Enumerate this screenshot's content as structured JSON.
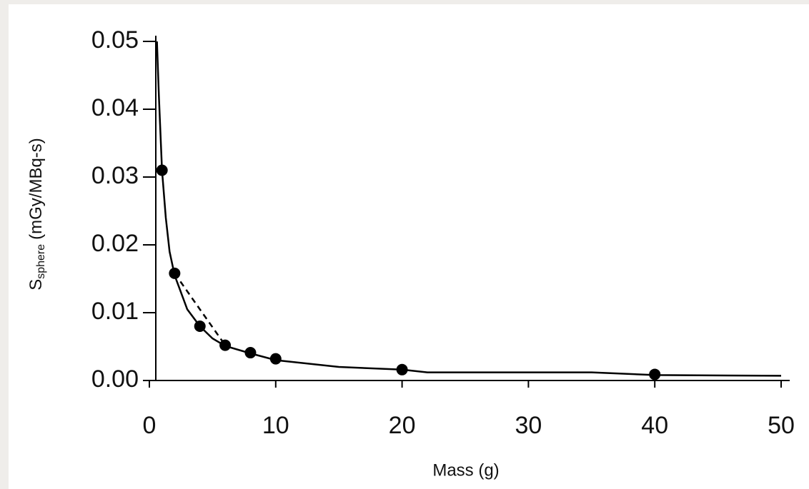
{
  "chart_data": {
    "type": "scatter",
    "xlabel": "Mass (g)",
    "ylabel": {
      "symbol": "S",
      "subscript": "sphere",
      "unit": "(mGy/MBq-s)"
    },
    "x": [
      1,
      2,
      4,
      6,
      8,
      10,
      20,
      40
    ],
    "values": [
      0.031,
      0.0158,
      0.008,
      0.0052,
      0.0041,
      0.0032,
      0.0016,
      0.0009
    ],
    "color": "#000000",
    "lines": [
      {
        "style": "solid",
        "x": [
          0.6,
          0.75,
          1,
          1.3,
          1.6,
          2,
          3,
          4,
          5,
          6,
          8,
          10,
          15,
          20,
          22,
          35,
          40,
          50
        ],
        "values": [
          0.05,
          0.042,
          0.031,
          0.024,
          0.019,
          0.0155,
          0.0105,
          0.008,
          0.0062,
          0.0051,
          0.004,
          0.003,
          0.002,
          0.0016,
          0.0012,
          0.0012,
          0.0008,
          0.0007
        ]
      },
      {
        "style": "dashed",
        "x": [
          2,
          4,
          6
        ],
        "values": [
          0.0158,
          0.0105,
          0.0052
        ]
      }
    ],
    "xlim": [
      0,
      50
    ],
    "ylim": [
      0,
      0.05
    ],
    "xticks": [
      0,
      10,
      20,
      30,
      40,
      50
    ],
    "yticks": [
      {
        "value": 0,
        "label": "0.00"
      },
      0.01,
      0.02,
      0.03,
      0.04,
      0.05
    ]
  }
}
